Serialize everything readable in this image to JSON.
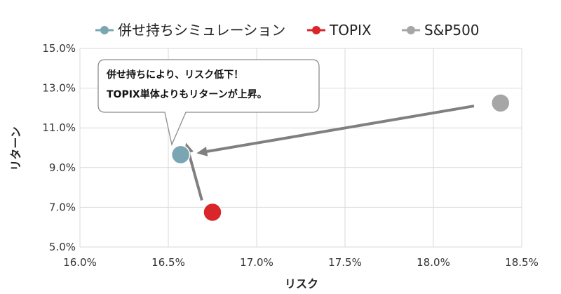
{
  "chart_data": {
    "type": "scatter",
    "title": "",
    "xlabel": "リスク",
    "ylabel": "リターン",
    "xlim": [
      16.0,
      18.5
    ],
    "ylim": [
      5.0,
      15.0
    ],
    "x_ticks": [
      "16.0%",
      "16.5%",
      "17.0%",
      "17.5%",
      "18.0%",
      "18.5%"
    ],
    "y_ticks": [
      "5.0%",
      "7.0%",
      "9.0%",
      "11.0%",
      "13.0%",
      "15.0%"
    ],
    "grid": true,
    "legend_position": "top",
    "series": [
      {
        "name": "併せ持ちシミュレーション",
        "color": "#7aa6b3",
        "x": 16.57,
        "y": 9.65
      },
      {
        "name": "TOPIX",
        "color": "#d9262a",
        "x": 16.75,
        "y": 6.75
      },
      {
        "name": "S&P500",
        "color": "#a6a6a6",
        "x": 18.38,
        "y": 12.25
      }
    ],
    "arrows": [
      {
        "from": [
          18.23,
          12.1
        ],
        "to": [
          16.66,
          9.72
        ]
      },
      {
        "from": [
          16.69,
          7.35
        ],
        "to": [
          16.6,
          10.25
        ]
      }
    ],
    "annotation": {
      "lines": [
        "併せ持ちにより、リスク低下！",
        "TOPIX単体よりもリターンが上昇。"
      ]
    }
  }
}
